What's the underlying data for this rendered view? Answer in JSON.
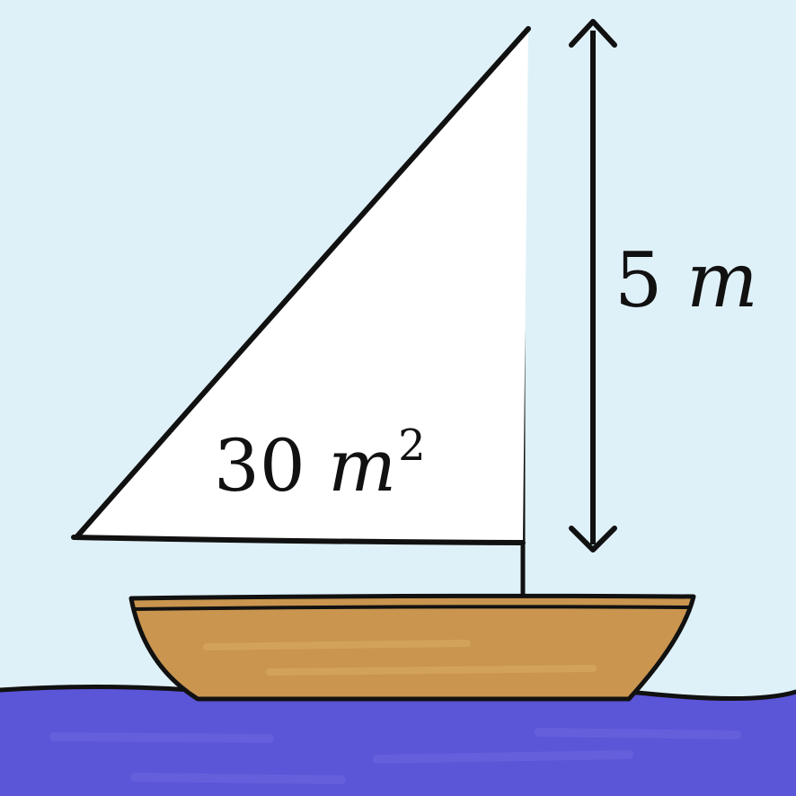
{
  "diagram": {
    "area_label": {
      "value": "30",
      "unit": "m",
      "exponent": "2"
    },
    "height_label": {
      "value": "5",
      "unit": "m"
    }
  },
  "colors": {
    "sky": "#dff1f8",
    "sail": "#ffffff",
    "hull": "#c9954f",
    "water": "#5b55d8",
    "outline": "#111111"
  }
}
